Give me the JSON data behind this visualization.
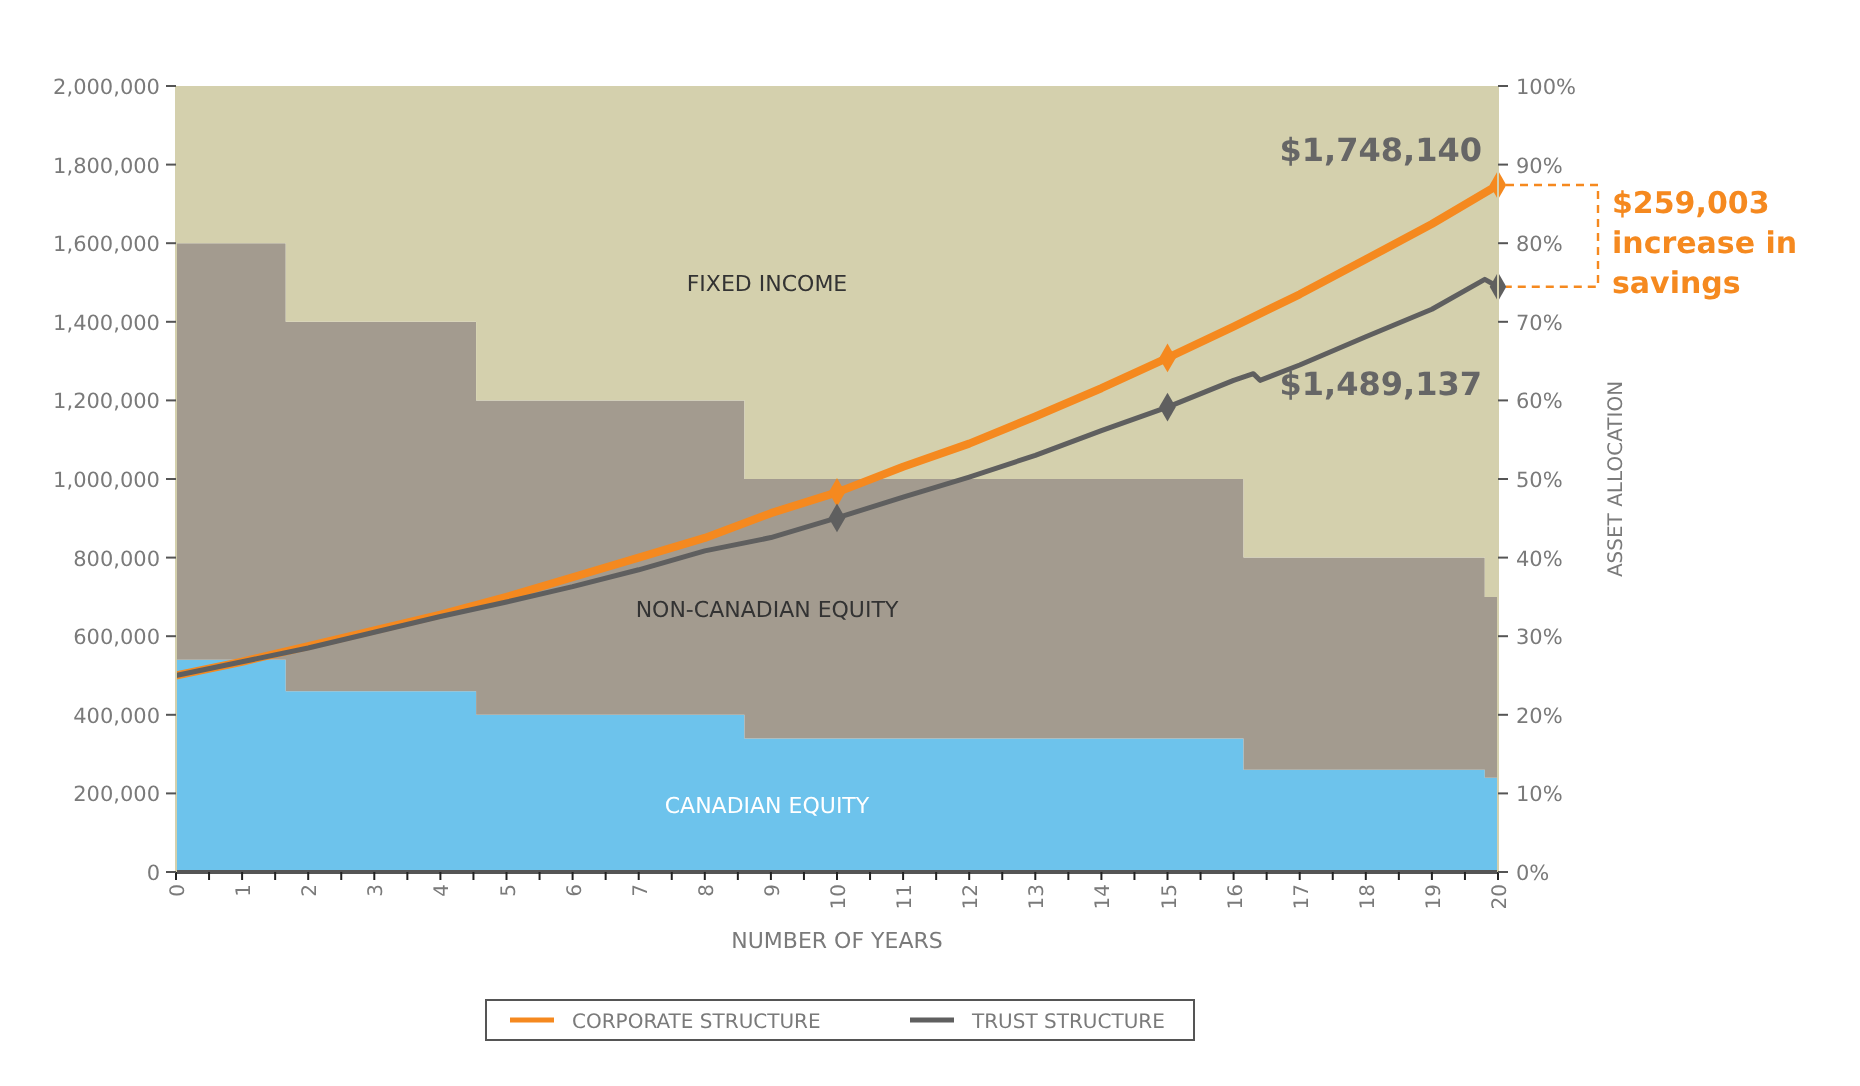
{
  "chart_data": {
    "type": "line",
    "xlabel": "NUMBER OF YEARS",
    "y2label": "ASSET ALLOCATION",
    "xlim": [
      0,
      20
    ],
    "xticks": [
      0,
      {
        "value": 0.5,
        "label": null
      },
      1,
      {
        "value": 1.5,
        "label": null
      },
      2,
      {
        "value": 2.5,
        "label": null
      },
      3,
      {
        "value": 3.5,
        "label": null
      },
      4,
      {
        "value": 4.5,
        "label": null
      },
      5,
      {
        "value": 5.5,
        "label": null
      },
      6,
      {
        "value": 6.5,
        "label": null
      },
      7,
      {
        "value": 7.5,
        "label": null
      },
      8,
      {
        "value": 8.5,
        "label": null
      },
      9,
      {
        "value": 9.5,
        "label": null
      },
      10,
      {
        "value": 10.5,
        "label": null
      },
      11,
      {
        "value": 11.5,
        "label": null
      },
      12,
      {
        "value": 12.5,
        "label": null
      },
      13,
      {
        "value": 13.5,
        "label": null
      },
      14,
      {
        "value": 14.5,
        "label": null
      },
      15,
      {
        "value": 15.5,
        "label": null
      },
      16,
      {
        "value": 16.5,
        "label": null
      },
      17,
      {
        "value": 17.5,
        "label": null
      },
      18,
      {
        "value": 18.5,
        "label": null
      },
      19,
      {
        "value": 19.5,
        "label": null
      },
      20
    ],
    "ylim": [
      0,
      2000000
    ],
    "yticks": [
      0,
      {
        "value": 200000,
        "label": "200,000"
      },
      {
        "value": 400000,
        "label": "400,000"
      },
      {
        "value": 600000,
        "label": "600,000"
      },
      {
        "value": 800000,
        "label": "800,000"
      },
      {
        "value": 1000000,
        "label": "1,000,000"
      },
      {
        "value": 1200000,
        "label": "1,200,000"
      },
      {
        "value": 1400000,
        "label": "1,400,000"
      },
      {
        "value": 1600000,
        "label": "1,600,000"
      },
      {
        "value": 1800000,
        "label": "1,800,000"
      },
      {
        "value": 2000000,
        "label": "2,000,000"
      }
    ],
    "y2lim": [
      0,
      100
    ],
    "y2ticks": [
      {
        "value": 0,
        "label": "0%"
      },
      {
        "value": 10,
        "label": "10%"
      },
      {
        "value": 20,
        "label": "20%"
      },
      {
        "value": 30,
        "label": "30%"
      },
      {
        "value": 40,
        "label": "40%"
      },
      {
        "value": 50,
        "label": "50%"
      },
      {
        "value": 60,
        "label": "60%"
      },
      {
        "value": 70,
        "label": "70%"
      },
      {
        "value": 80,
        "label": "80%"
      },
      {
        "value": 90,
        "label": "90%"
      },
      {
        "value": 100,
        "label": "100%"
      }
    ],
    "stacked": true,
    "grid": false,
    "legend": "bottom",
    "series": [
      {
        "name": "CANADIAN EQUITY",
        "type": "area",
        "axis": "y2",
        "color": "#6dc3ec",
        "x": [
          0,
          1.66,
          1.66,
          4.54,
          4.54,
          8.6,
          8.6,
          16.15,
          16.15,
          19.8,
          19.8,
          20
        ],
        "values": [
          27,
          27,
          23,
          23,
          20,
          20,
          17,
          17,
          13,
          13,
          12,
          12
        ]
      },
      {
        "name": "NON-CANADIAN EQUITY",
        "type": "area",
        "axis": "y2",
        "color": "#a39b8f",
        "x": [
          0,
          1.66,
          1.66,
          4.54,
          4.54,
          8.6,
          8.6,
          16.15,
          16.15,
          19.8,
          19.8,
          20
        ],
        "values": [
          53,
          53,
          47,
          47,
          40,
          40,
          33,
          33,
          27,
          27,
          23,
          23
        ]
      },
      {
        "name": "FIXED INCOME",
        "type": "area",
        "axis": "y2",
        "color": "#d4d0ad",
        "x": [
          0,
          1.66,
          1.66,
          4.54,
          4.54,
          8.6,
          8.6,
          16.15,
          16.15,
          19.8,
          19.8,
          20
        ],
        "values": [
          20,
          20,
          30,
          30,
          40,
          40,
          50,
          50,
          60,
          60,
          65,
          65
        ]
      },
      {
        "name": "CORPORATE STRUCTURE",
        "color": "#f5891f",
        "line_style": "solid",
        "x": [
          0,
          1,
          2,
          3,
          4,
          5,
          6,
          7,
          8,
          9,
          10,
          11,
          12,
          13,
          14,
          15,
          16,
          17,
          18,
          19,
          20
        ],
        "values": [
          500000,
          535000,
          575000,
          615000,
          655000,
          700000,
          750000,
          800000,
          850000,
          913000,
          966000,
          1031000,
          1090000,
          1159000,
          1231000,
          1308000,
          1388000,
          1470000,
          1559000,
          1649000,
          1748140
        ]
      },
      {
        "name": "TRUST STRUCTURE",
        "color": "#5f5f5f",
        "line_style": "solid",
        "x": [
          0,
          1,
          2,
          3,
          4,
          5,
          6,
          7,
          8,
          9,
          10,
          11,
          12,
          13,
          14,
          15,
          16,
          16.3,
          16.4,
          17,
          18,
          19,
          19.8,
          20
        ],
        "values": [
          500000,
          535000,
          570000,
          610000,
          650000,
          687000,
          726000,
          769000,
          817000,
          851000,
          901000,
          954000,
          1005000,
          1060000,
          1123000,
          1183000,
          1251000,
          1268000,
          1251000,
          1290000,
          1362000,
          1432000,
          1508000,
          1489137
        ]
      },
      {
        "type": "scatter",
        "marker": "diamond",
        "color": "#f5891f",
        "x": [
          10,
          15,
          20
        ],
        "values": [
          966000,
          1308000,
          1748140
        ]
      },
      {
        "type": "scatter",
        "marker": "diamond",
        "color": "#5f5f5f",
        "x": [
          10,
          15,
          20
        ],
        "values": [
          901000,
          1183000,
          1489137
        ]
      }
    ],
    "annotations": [
      {
        "text": "$1,748,140",
        "x": 20,
        "y": 1748140
      },
      {
        "text": "$1,489,137",
        "x": 20,
        "y": 1489137
      },
      "$259,003 increase in savings"
    ]
  }
}
